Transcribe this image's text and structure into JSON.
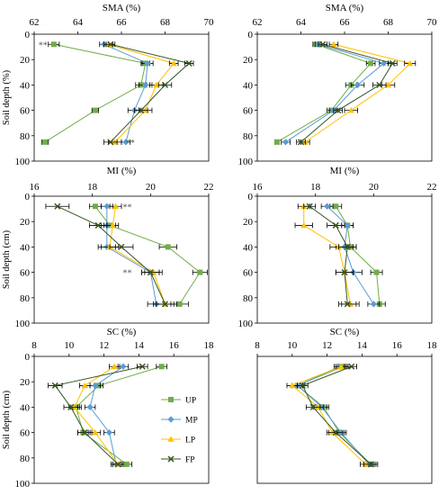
{
  "colors": {
    "UP": "#70ad47",
    "MP": "#5b9bd5",
    "LP": "#ffc000",
    "FP": "#375623",
    "errorbar": "#000000"
  },
  "legend": {
    "placement": "right of bottom-left panel",
    "entries": [
      "UP",
      "MP",
      "LP",
      "FP"
    ]
  },
  "chart_data": [
    {
      "type": "line",
      "id": "sma-left",
      "title": "SMA (%)",
      "ylabel": "Soil depth (%)",
      "xlim": [
        62,
        70
      ],
      "ylim": [
        0,
        100
      ],
      "xticks": [
        62,
        64,
        66,
        68,
        70
      ],
      "yticks": [
        0,
        20,
        40,
        60,
        80,
        100
      ],
      "depths": [
        8,
        23,
        40,
        60,
        85
      ],
      "series": [
        {
          "name": "UP",
          "x": [
            62.9,
            67.1,
            66.9,
            64.8,
            62.5
          ],
          "err": [
            0.25,
            0.2,
            0.25,
            0.15,
            0.15
          ]
        },
        {
          "name": "MP",
          "x": [
            65.2,
            67.2,
            67.1,
            66.6,
            66.2
          ],
          "err": [
            0.2,
            0.25,
            0.3,
            0.3,
            0.2
          ]
        },
        {
          "name": "LP",
          "x": [
            65.4,
            68.4,
            67.6,
            67.1,
            65.7
          ],
          "err": [
            0.2,
            0.2,
            0.3,
            0.3,
            0.3
          ]
        },
        {
          "name": "FP",
          "x": [
            65.5,
            69.1,
            68.0,
            66.9,
            65.5
          ],
          "err": [
            0.2,
            0.2,
            0.3,
            0.3,
            0.3
          ]
        }
      ],
      "annotations": [
        {
          "text": "**",
          "x": 62.4,
          "y": 8
        },
        {
          "text": "**",
          "x": 66.4,
          "y": 85
        }
      ]
    },
    {
      "type": "line",
      "id": "sma-right",
      "title": "SMA (%)",
      "ylabel": "",
      "xlim": [
        62,
        70
      ],
      "ylim": [
        0,
        100
      ],
      "xticks": [
        62,
        64,
        66,
        68,
        70
      ],
      "yticks": [
        0,
        20,
        40,
        60,
        80,
        100
      ],
      "depths": [
        8,
        23,
        40,
        60,
        85
      ],
      "series": [
        {
          "name": "UP",
          "x": [
            64.7,
            67.2,
            66.3,
            65.4,
            62.9
          ],
          "err": [
            0.15,
            0.2,
            0.25,
            0.2,
            0.1
          ]
        },
        {
          "name": "MP",
          "x": [
            64.8,
            67.8,
            66.6,
            65.5,
            63.3
          ],
          "err": [
            0.15,
            0.2,
            0.3,
            0.2,
            0.2
          ]
        },
        {
          "name": "LP",
          "x": [
            65.5,
            69.0,
            68.0,
            66.3,
            64.2
          ],
          "err": [
            0.2,
            0.25,
            0.3,
            0.3,
            0.2
          ]
        },
        {
          "name": "FP",
          "x": [
            65.0,
            68.2,
            67.6,
            65.7,
            64.0
          ],
          "err": [
            0.2,
            0.2,
            0.3,
            0.2,
            0.2
          ]
        }
      ],
      "annotations": []
    },
    {
      "type": "line",
      "id": "mi-left",
      "title": "MI (%)",
      "ylabel": "Soil depth (cm)",
      "xlim": [
        16,
        22
      ],
      "ylim": [
        0,
        100
      ],
      "xticks": [
        16,
        18,
        20,
        22
      ],
      "yticks": [
        0,
        20,
        40,
        60,
        80,
        100
      ],
      "depths": [
        8,
        23,
        40,
        60,
        85
      ],
      "series": [
        {
          "name": "UP",
          "x": [
            18.1,
            18.6,
            20.6,
            21.7,
            21.0
          ],
          "err": [
            0.2,
            0.2,
            0.3,
            0.25,
            0.3
          ]
        },
        {
          "name": "MP",
          "x": [
            18.5,
            18.5,
            18.5,
            20.0,
            20.2
          ],
          "err": [
            0.2,
            0.2,
            0.3,
            0.3,
            0.3
          ]
        },
        {
          "name": "LP",
          "x": [
            18.8,
            18.7,
            18.6,
            20.1,
            20.5
          ],
          "err": [
            0.2,
            0.2,
            0.3,
            0.3,
            0.3
          ]
        },
        {
          "name": "FP",
          "x": [
            16.8,
            18.2,
            19.0,
            20.0,
            20.5
          ],
          "err": [
            0.4,
            0.3,
            0.4,
            0.3,
            0.4
          ]
        }
      ],
      "annotations": [
        {
          "text": "**",
          "x": 19.2,
          "y": 8
        },
        {
          "text": "**",
          "x": 19.2,
          "y": 60
        }
      ]
    },
    {
      "type": "line",
      "id": "mi-right",
      "title": "MI (%)",
      "ylabel": "",
      "xlim": [
        16,
        22
      ],
      "ylim": [
        0,
        100
      ],
      "xticks": [
        16,
        18,
        20,
        22
      ],
      "yticks": [
        0,
        20,
        40,
        60,
        80,
        100
      ],
      "depths": [
        8,
        23,
        40,
        60,
        85
      ],
      "series": [
        {
          "name": "UP",
          "x": [
            18.7,
            19.1,
            19.2,
            20.1,
            20.2
          ],
          "err": [
            0.2,
            0.2,
            0.2,
            0.2,
            0.2
          ]
        },
        {
          "name": "MP",
          "x": [
            18.4,
            19.1,
            19.0,
            19.3,
            20.0
          ],
          "err": [
            0.2,
            0.2,
            0.3,
            0.3,
            0.2
          ]
        },
        {
          "name": "LP",
          "x": [
            17.6,
            17.6,
            18.8,
            19.0,
            19.2
          ],
          "err": [
            0.2,
            0.3,
            0.3,
            0.3,
            0.3
          ]
        },
        {
          "name": "FP",
          "x": [
            17.8,
            18.7,
            19.1,
            19.0,
            19.1
          ],
          "err": [
            0.2,
            0.3,
            0.3,
            0.3,
            0.3
          ]
        }
      ],
      "annotations": []
    },
    {
      "type": "line",
      "id": "sc-left",
      "title": "SC (%)",
      "ylabel": "Soil depth (cm)",
      "xlim": [
        8,
        18
      ],
      "ylim": [
        0,
        100
      ],
      "xticks": [
        8,
        10,
        12,
        14,
        16,
        18
      ],
      "yticks": [
        0,
        20,
        40,
        60,
        80,
        100
      ],
      "depths": [
        8,
        23,
        40,
        60,
        85
      ],
      "series": [
        {
          "name": "UP",
          "x": [
            15.3,
            11.7,
            10.4,
            10.8,
            13.3
          ],
          "err": [
            0.3,
            0.25,
            0.3,
            0.3,
            0.3
          ]
        },
        {
          "name": "MP",
          "x": [
            13.1,
            11.5,
            11.2,
            12.3,
            12.7
          ],
          "err": [
            0.3,
            0.3,
            0.3,
            0.3,
            0.3
          ]
        },
        {
          "name": "LP",
          "x": [
            12.6,
            10.9,
            10.3,
            11.5,
            12.8
          ],
          "err": [
            0.3,
            0.3,
            0.3,
            0.3,
            0.3
          ]
        },
        {
          "name": "FP",
          "x": [
            14.2,
            9.2,
            10.1,
            10.9,
            12.8
          ],
          "err": [
            0.3,
            0.4,
            0.4,
            0.4,
            0.3
          ]
        }
      ],
      "annotations": []
    },
    {
      "type": "line",
      "id": "sc-right",
      "title": "SC (%)",
      "ylabel": "",
      "xlim": [
        8,
        18
      ],
      "ylim": [
        0,
        100
      ],
      "xticks": [
        8,
        10,
        12,
        14,
        16,
        18
      ],
      "yticks": [],
      "depths": [
        8,
        23,
        40,
        60,
        85
      ],
      "series": [
        {
          "name": "UP",
          "x": [
            12.9,
            10.3,
            11.8,
            12.7,
            14.5
          ],
          "err": [
            0.3,
            0.3,
            0.3,
            0.3,
            0.3
          ]
        },
        {
          "name": "MP",
          "x": [
            12.7,
            10.3,
            11.7,
            12.8,
            14.4
          ],
          "err": [
            0.3,
            0.3,
            0.3,
            0.3,
            0.3
          ]
        },
        {
          "name": "LP",
          "x": [
            12.8,
            10.0,
            11.5,
            12.3,
            14.2
          ],
          "err": [
            0.3,
            0.3,
            0.3,
            0.3,
            0.3
          ]
        },
        {
          "name": "FP",
          "x": [
            13.4,
            10.6,
            11.2,
            12.5,
            14.5
          ],
          "err": [
            0.3,
            0.3,
            0.4,
            0.4,
            0.4
          ]
        }
      ],
      "annotations": []
    }
  ]
}
